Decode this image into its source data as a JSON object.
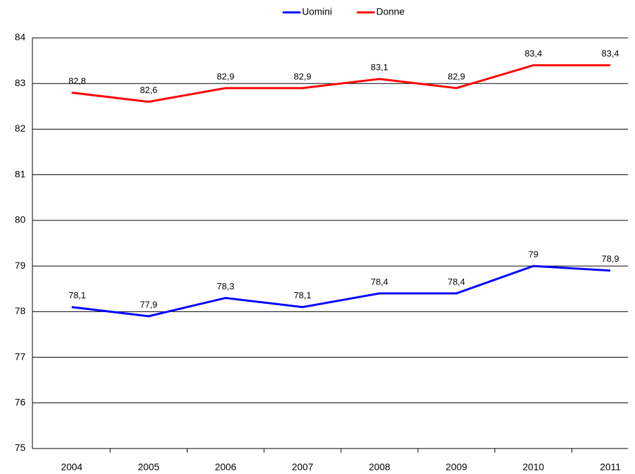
{
  "chart_data": {
    "type": "line",
    "categories": [
      "2004",
      "2005",
      "2006",
      "2007",
      "2008",
      "2009",
      "2010",
      "2011"
    ],
    "series": [
      {
        "name": "Uomini",
        "color": "#0000ff",
        "values": [
          78.1,
          77.9,
          78.3,
          78.1,
          78.4,
          78.4,
          79,
          78.9
        ],
        "value_labels": [
          "78,1",
          "77,9",
          "78,3",
          "78,1",
          "78,4",
          "78,4",
          "79",
          "78,9"
        ]
      },
      {
        "name": "Donne",
        "color": "#ff0000",
        "values": [
          82.8,
          82.6,
          82.9,
          82.9,
          83.1,
          82.9,
          83.4,
          83.4
        ],
        "value_labels": [
          "82,8",
          "82,6",
          "82,9",
          "82,9",
          "83,1",
          "82,9",
          "83,4",
          "83,4"
        ]
      }
    ],
    "ylim": [
      75,
      84
    ],
    "yticks": [
      75,
      76,
      77,
      78,
      79,
      80,
      81,
      82,
      83,
      84
    ],
    "grid": true,
    "legend": "top"
  }
}
